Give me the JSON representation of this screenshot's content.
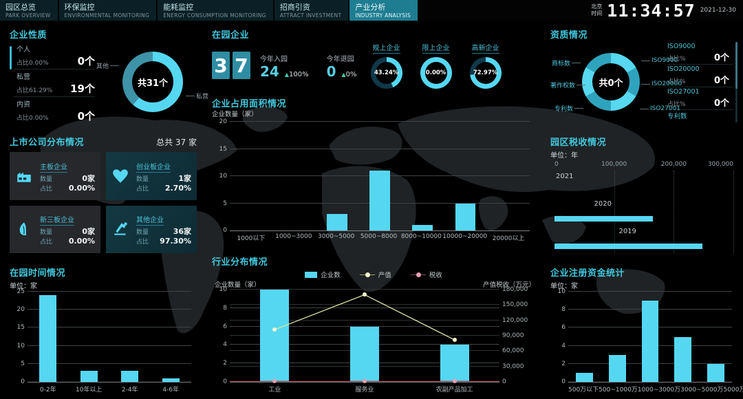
{
  "header": {
    "tabs": [
      {
        "zh": "园区总览",
        "en": "PARK OVERVIEW"
      },
      {
        "zh": "环保监控",
        "en": "ENVIRONMENTAL MONITORING"
      },
      {
        "zh": "能耗监控",
        "en": "ENERGY CONSUMPTION MONITORING"
      },
      {
        "zh": "招商引资",
        "en": "ATTRACT INVESTMENT"
      },
      {
        "zh": "产业分析",
        "en": "INDUSTRY ANALYSIS"
      }
    ],
    "active_tab_index": 4,
    "clock": {
      "region": "北京",
      "region2": "时间",
      "time": "11:34:57",
      "date": "2021-12-30"
    }
  },
  "colors": {
    "accent": "#55d7f2",
    "donut_muted": "#3e93a8",
    "gauge_track": "#10394a",
    "q_donut_a": "#57d8f0",
    "q_donut_b": "#2fa3bd",
    "line_chanzhi": "#dde8a0",
    "dot_chanzhi": "#f5f7d0",
    "line_shuishou": "#a23a44",
    "dot_shuishou": "#e8a0b4"
  },
  "panels": {
    "enterprise_nature": {
      "title": "企业性质",
      "items": [
        {
          "name": "个人",
          "ratio": "占比0.00%",
          "count": "0个"
        },
        {
          "name": "私营",
          "ratio": "占比61.29%",
          "count": "19个"
        },
        {
          "name": "内资",
          "ratio": "占比0.00%",
          "count": "0个"
        }
      ],
      "donut": {
        "center": "共31个",
        "label_left": "其他",
        "label_right": "私营",
        "slices": [
          {
            "name": "私营",
            "pct": 61.29
          },
          {
            "name": "其他",
            "pct": 38.71
          }
        ]
      }
    },
    "in_park": {
      "title": "在园企业",
      "digits": [
        "3",
        "7"
      ],
      "stats": [
        {
          "label": "今年入园",
          "value": "24",
          "trend": "100%"
        },
        {
          "label": "今年退园",
          "value": "0",
          "trend": "0%"
        }
      ],
      "gauges": [
        {
          "label": "规上企业",
          "value": "43.24%",
          "pct": 43.24
        },
        {
          "label": "限上企业",
          "value": "0.00%",
          "pct": 0
        },
        {
          "label": "高新企业",
          "value": "72.97%",
          "pct": 72.97
        }
      ]
    },
    "qualifications": {
      "title": "资质情况",
      "donut_center": "共0个",
      "labels_left": [
        "商标数",
        "著作权数",
        "专利数"
      ],
      "labels_right": [
        "ISO9000",
        "ISO20000",
        "ISO27001"
      ],
      "list": [
        {
          "name": "ISO9000",
          "ratio": "占比%",
          "count": "0个"
        },
        {
          "name": "ISO20000",
          "ratio": "占比%",
          "count": "0个"
        },
        {
          "name": "ISO27001",
          "ratio": "占比%",
          "count": "0个"
        },
        {
          "name": "专利数",
          "ratio": "占比%",
          "count": "0个"
        }
      ]
    },
    "listed": {
      "title": "上市公司分布情况",
      "total": "总共 37 家",
      "count_label": "数量",
      "ratio_label": "占比",
      "cards": [
        {
          "name": "主板企业",
          "count": "0家",
          "ratio": "0.00%",
          "icon": "factory-icon",
          "accent": false
        },
        {
          "name": "创业板企业",
          "count": "1家",
          "ratio": "2.70%",
          "icon": "heart-icon",
          "accent": true
        },
        {
          "name": "新三板企业",
          "count": "0家",
          "ratio": "0.00%",
          "icon": "leaf-icon",
          "accent": false
        },
        {
          "name": "其他企业",
          "count": "36家",
          "ratio": "97.30%",
          "icon": "robot-arm-icon",
          "accent": true
        }
      ]
    }
  },
  "chart_data": [
    {
      "id": "occupied_area",
      "type": "bar",
      "title": "企业占用面积情况",
      "ylabel": "企业数量（家）",
      "categories": [
        "1000以下",
        "1000~3000",
        "3000~5000",
        "5000~8000",
        "8000~10000",
        "10000~20000",
        "20000以上"
      ],
      "values": [
        0,
        0,
        3,
        11,
        1,
        5,
        0
      ],
      "ylim": [
        0,
        20
      ],
      "yticks": [
        0,
        5,
        10,
        15,
        20
      ]
    },
    {
      "id": "park_tax",
      "type": "bar-horizontal",
      "title": "园区税收情况",
      "unit": "单位：年",
      "categories": [
        "2021",
        "2020",
        "2019"
      ],
      "values": [
        0,
        165000,
        248000
      ],
      "xlim": [
        0,
        300000
      ],
      "xticks": [
        "0",
        "100,000",
        "200,000",
        "300,000"
      ]
    },
    {
      "id": "time_in_park",
      "type": "bar",
      "title": "在园时间情况",
      "unit": "单位：家",
      "categories": [
        "0-2年",
        "10年以上",
        "2-4年",
        "4-6年"
      ],
      "values": [
        24,
        3,
        3,
        1
      ],
      "ylim": [
        0,
        25
      ],
      "yticks": [
        0,
        5,
        10,
        15,
        20,
        25
      ]
    },
    {
      "id": "industry_distribution",
      "type": "bar+line",
      "title": "行业分布情况",
      "ylabel_left": "企业数量（家）",
      "ylabel_right": "产值税收（万元）",
      "categories": [
        "工业",
        "服务业",
        "农副产品加工"
      ],
      "series": [
        {
          "name": "企业数",
          "type": "bar",
          "axis": "left",
          "values": [
            10,
            6,
            4
          ]
        },
        {
          "name": "产值",
          "type": "line",
          "axis": "right",
          "values": [
            102000,
            170000,
            82000
          ]
        },
        {
          "name": "税收",
          "type": "line",
          "axis": "right",
          "values": [
            0,
            0,
            0
          ]
        }
      ],
      "ylim_left": [
        0,
        10
      ],
      "yticks_left": [
        0,
        2,
        4,
        6,
        8,
        10
      ],
      "ylim_right": [
        0,
        180000
      ],
      "yticks_right": [
        "0",
        "30,000",
        "60,000",
        "90,000",
        "120,000",
        "150,000",
        "180,000"
      ]
    },
    {
      "id": "registered_capital",
      "type": "bar",
      "title": "企业注册资金统计",
      "unit": "单位：家",
      "categories": [
        "500万以下",
        "500~1000万",
        "1000~3000万",
        "3000~5000万",
        "5000万以上"
      ],
      "values": [
        1,
        3,
        9,
        5,
        2
      ],
      "ylim": [
        0,
        10
      ],
      "yticks": [
        0,
        2,
        4,
        6,
        8,
        10
      ]
    }
  ]
}
